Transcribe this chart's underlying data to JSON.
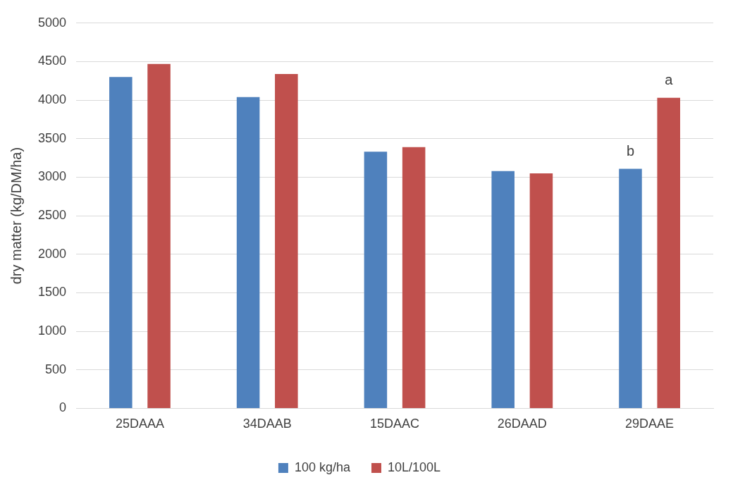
{
  "chart_data": {
    "type": "bar",
    "ylabel": "dry matter (kg/DM/ha)",
    "categories": [
      "25DAAA",
      "34DAAB",
      "15DAAC",
      "26DAAD",
      "29DAAE"
    ],
    "series": [
      {
        "name": "100 kg/ha",
        "color": "#4f81bd",
        "values": [
          4300,
          4040,
          3330,
          3080,
          3110
        ]
      },
      {
        "name": "10L/100L",
        "color": "#c0504d",
        "values": [
          4470,
          4340,
          3390,
          3050,
          4030
        ]
      }
    ],
    "ylim": [
      0,
      5000
    ],
    "yticks": [
      0,
      500,
      1000,
      1500,
      2000,
      2500,
      3000,
      3500,
      4000,
      4500,
      5000
    ],
    "grid": "y",
    "legend": "bottom",
    "annotations": [
      "b",
      "a"
    ]
  }
}
